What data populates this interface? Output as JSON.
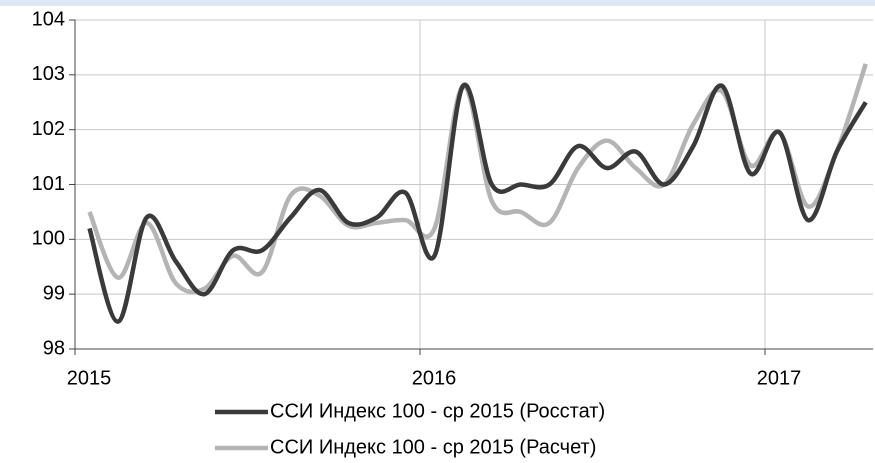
{
  "chart_data": {
    "type": "line",
    "x": [
      2015.042,
      2015.125,
      2015.208,
      2015.292,
      2015.375,
      2015.458,
      2015.542,
      2015.625,
      2015.708,
      2015.792,
      2015.875,
      2015.958,
      2016.042,
      2016.125,
      2016.208,
      2016.292,
      2016.375,
      2016.458,
      2016.542,
      2016.625,
      2016.708,
      2016.792,
      2016.875,
      2016.958,
      2017.042,
      2017.125,
      2017.208,
      2017.292
    ],
    "series": [
      {
        "name": "ССИ Индекс 100 - ср 2015 (Росстат)",
        "color": "#3a3a3a",
        "values": [
          100.2,
          98.5,
          100.4,
          99.6,
          99.0,
          99.8,
          99.8,
          100.4,
          100.9,
          100.3,
          100.4,
          100.85,
          99.7,
          102.8,
          101.0,
          101.0,
          101.0,
          101.7,
          101.3,
          101.6,
          101.0,
          101.7,
          102.8,
          101.2,
          101.95,
          100.35,
          101.6,
          102.5
        ]
      },
      {
        "name": "ССИ Индекс 100 - ср 2015 (Расчет)",
        "color": "#b4b4b4",
        "values": [
          100.5,
          99.3,
          100.3,
          99.2,
          99.1,
          99.7,
          99.4,
          100.8,
          100.8,
          100.25,
          100.3,
          100.35,
          100.2,
          102.8,
          100.7,
          100.5,
          100.3,
          101.3,
          101.8,
          101.3,
          101.0,
          102.1,
          102.7,
          101.35,
          101.95,
          100.6,
          101.6,
          103.2
        ]
      }
    ],
    "xlim": [
      2015,
      2017.313
    ],
    "xticks": [
      2015,
      2016,
      2017
    ],
    "ylim": [
      98,
      104
    ],
    "yticks": [
      98,
      99,
      100,
      101,
      102,
      103,
      104
    ],
    "grid": true
  }
}
